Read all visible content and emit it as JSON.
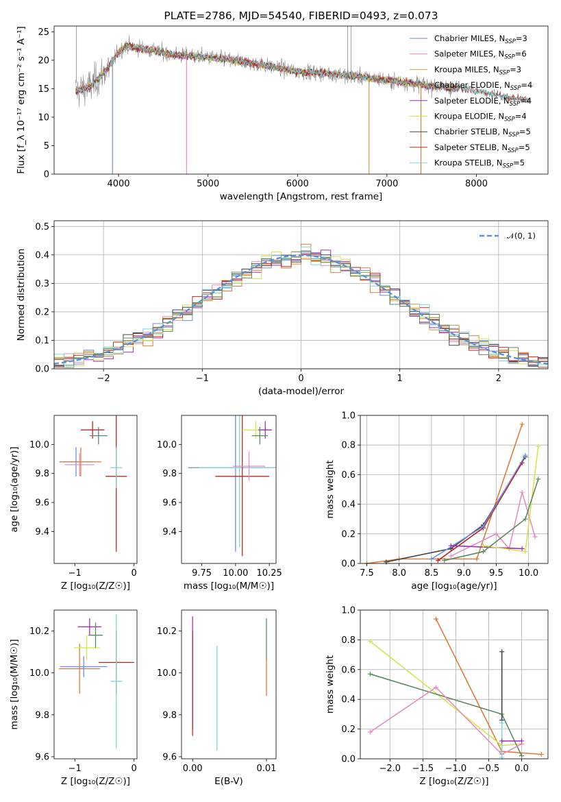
{
  "palette": [
    "#6d8be0",
    "#e88cc0",
    "#bfa43c",
    "#e07b39",
    "#9b2fb0",
    "#d7e34b",
    "#444444",
    "#c0241e",
    "#7fd6d6",
    "#5b8a5e"
  ],
  "chart_data": [
    {
      "id": "spectrum",
      "type": "line",
      "title": "PLATE=2786, MJD=54540, FIBERID=0493, z=0.073",
      "xlabel": "wavelength [Angstrom, rest frame]",
      "ylabel": "Flux [f_λ 10⁻¹⁷ erg cm⁻² s⁻¹ A⁻¹]",
      "xlim": [
        3280,
        8800
      ],
      "ylim": [
        0,
        26
      ],
      "xticks": [
        "4000",
        "5000",
        "6000",
        "7000",
        "8000"
      ],
      "yticks": [
        "0",
        "5",
        "10",
        "15",
        "20",
        "25"
      ],
      "grid": false,
      "legend_position": "top-right",
      "legend": [
        {
          "label": "Chabrier MILES, N",
          "sub": "SSP",
          "val": "=3",
          "color": "#6d8be0"
        },
        {
          "label": "Salpeter MILES, N",
          "sub": "SSP",
          "val": "=6",
          "color": "#e88cc0"
        },
        {
          "label": "Kroupa MILES, N",
          "sub": "SSP",
          "val": "=3",
          "color": "#bfa43c"
        },
        {
          "label": "Chabrier ELODIE, N",
          "sub": "SSP",
          "val": "=4",
          "color": "#e07b39"
        },
        {
          "label": "Salpeter ELODIE, N",
          "sub": "SSP",
          "val": "=4",
          "color": "#9b2fb0"
        },
        {
          "label": "Kroupa ELODIE, N",
          "sub": "SSP",
          "val": "=4",
          "color": "#d7e34b"
        },
        {
          "label": "Chabrier STELIB, N",
          "sub": "SSP",
          "val": "=5",
          "color": "#444444"
        },
        {
          "label": "Salpeter STELIB, N",
          "sub": "SSP",
          "val": "=5",
          "color": "#c0241e"
        },
        {
          "label": "Kroupa STELIB, N",
          "sub": "SSP",
          "val": "=5",
          "color": "#7fd6d6"
        }
      ],
      "continuum": [
        [
          3520,
          14.5
        ],
        [
          3700,
          15.5
        ],
        [
          3900,
          19.0
        ],
        [
          4000,
          21.5
        ],
        [
          4100,
          22.5
        ],
        [
          4300,
          22.0
        ],
        [
          4600,
          21.0
        ],
        [
          5000,
          20.5
        ],
        [
          5500,
          19.5
        ],
        [
          6000,
          18.0
        ],
        [
          6500,
          17.5
        ],
        [
          7000,
          16.5
        ],
        [
          7500,
          15.5
        ],
        [
          7800,
          15.0
        ]
      ],
      "stelib_continuum": [
        [
          7500,
          15.5
        ],
        [
          7800,
          15.2
        ],
        [
          8000,
          14.6
        ],
        [
          8200,
          14.0
        ],
        [
          8500,
          13.2
        ],
        [
          8600,
          12.9
        ]
      ],
      "absorption_lines": [
        [
          3933,
          0
        ],
        [
          4760,
          0
        ],
        [
          6800,
          0
        ],
        [
          7380,
          0
        ]
      ],
      "data_spikes": [
        [
          3530,
          26
        ],
        [
          6560,
          26
        ],
        [
          6600,
          26
        ]
      ]
    },
    {
      "id": "residuals",
      "type": "line",
      "xlabel": "(data-model)/error",
      "ylabel": "Normed distribution",
      "xlim": [
        -2.5,
        2.5
      ],
      "ylim": [
        0,
        0.52
      ],
      "xticks": [
        "−2",
        "−1",
        "0",
        "1",
        "2"
      ],
      "yticks": [
        "0.0",
        "0.1",
        "0.2",
        "0.3",
        "0.4",
        "0.5"
      ],
      "grid": true,
      "legend_position": "top-right",
      "legend": [
        {
          "label": "𝒩(0, 1)",
          "color": "#5b8fd6"
        }
      ],
      "bin_width": 0.1
    },
    {
      "id": "age-vs-z",
      "type": "scatter",
      "xlabel": "Z [log₁₀(Z/Z☉)]",
      "ylabel": "age  [log₁₀(age/yr)]",
      "xlim": [
        -1.35,
        0.05
      ],
      "ylim": [
        9.18,
        10.2
      ],
      "xticks": [
        "−1",
        "0"
      ],
      "yticks": [
        "9.4",
        "9.6",
        "9.8",
        "10.0"
      ],
      "points": [
        {
          "x": -0.98,
          "y": 9.88,
          "xerr": 0.28,
          "yerr": 0.1,
          "color": "#6d8be0"
        },
        {
          "x": -0.92,
          "y": 9.86,
          "xerr": 0.25,
          "yerr": 0.08,
          "color": "#e88cc0"
        },
        {
          "x": -0.9,
          "y": 9.88,
          "xerr": 0.35,
          "yerr": 0.1,
          "color": "#e07b39"
        },
        {
          "x": -0.7,
          "y": 10.1,
          "xerr": 0.2,
          "yerr": 0.06,
          "color": "#c0241e"
        },
        {
          "x": -0.6,
          "y": 10.06,
          "xerr": 0.15,
          "yerr": 0.06,
          "color": "#5b8a5e"
        },
        {
          "x": -0.3,
          "y": 9.78,
          "xerr": 0.18,
          "yerr": 0.52,
          "color": "#c0241e"
        },
        {
          "x": -0.3,
          "y": 9.84,
          "xerr": 0.1,
          "yerr": 0.14,
          "color": "#7fd6d6"
        }
      ]
    },
    {
      "id": "age-vs-mass",
      "type": "scatter",
      "xlabel": "mass [log₁₀(M/M☉)]",
      "ylabel": "",
      "xlim": [
        9.6,
        10.3
      ],
      "ylim": [
        9.18,
        10.2
      ],
      "xticks": [
        "9.75",
        "10.00",
        "10.25"
      ],
      "yticks": [
        "9.4",
        "9.6",
        "9.8",
        "10.0"
      ],
      "points": [
        {
          "x": 10.0,
          "y": 9.84,
          "xerr": 0.35,
          "yerr": 0.58,
          "color": "#6d8be0"
        },
        {
          "x": 10.03,
          "y": 9.84,
          "xerr": 0.3,
          "yerr": 0.55,
          "color": "#7fd6d6"
        },
        {
          "x": 10.05,
          "y": 9.78,
          "xerr": 0.2,
          "yerr": 0.55,
          "color": "#c0241e"
        },
        {
          "x": 10.1,
          "y": 9.85,
          "xerr": 0.12,
          "yerr": 0.1,
          "color": "#e88cc0"
        },
        {
          "x": 10.15,
          "y": 10.1,
          "xerr": 0.1,
          "yerr": 0.06,
          "color": "#d7e34b"
        },
        {
          "x": 10.22,
          "y": 10.1,
          "xerr": 0.05,
          "yerr": 0.06,
          "color": "#9b2fb0"
        },
        {
          "x": 10.18,
          "y": 10.06,
          "xerr": 0.06,
          "yerr": 0.06,
          "color": "#5b8a5e"
        }
      ]
    },
    {
      "id": "weight-vs-age",
      "type": "line",
      "xlabel": "age  [log₁₀(age/yr)]",
      "ylabel": "mass weight",
      "xlim": [
        7.4,
        10.3
      ],
      "ylim": [
        0,
        1
      ],
      "xticks": [
        "7.5",
        "8.0",
        "8.5",
        "9.0",
        "9.5",
        "10.0"
      ],
      "yticks": [
        "0.0",
        "0.2",
        "0.4",
        "0.6",
        "0.8",
        "1.0"
      ],
      "grid": true,
      "series": [
        {
          "color": "#e07b39",
          "points": [
            [
              7.5,
              0.0
            ],
            [
              8.0,
              0.03
            ],
            [
              9.2,
              0.03
            ],
            [
              9.9,
              0.94
            ]
          ]
        },
        {
          "color": "#444444",
          "points": [
            [
              7.8,
              0.01
            ],
            [
              8.8,
              0.1
            ],
            [
              9.3,
              0.26
            ],
            [
              9.95,
              0.72
            ]
          ]
        },
        {
          "color": "#c0241e",
          "points": [
            [
              8.6,
              0.02
            ],
            [
              9.3,
              0.24
            ],
            [
              9.9,
              0.68
            ]
          ]
        },
        {
          "color": "#6d8be0",
          "points": [
            [
              8.5,
              0.03
            ],
            [
              9.3,
              0.25
            ],
            [
              9.95,
              0.73
            ]
          ]
        },
        {
          "color": "#e88cc0",
          "points": [
            [
              8.8,
              0.05
            ],
            [
              9.5,
              0.2
            ],
            [
              9.7,
              0.1
            ],
            [
              9.9,
              0.48
            ],
            [
              10.1,
              0.18
            ]
          ]
        },
        {
          "color": "#9b2fb0",
          "points": [
            [
              8.8,
              0.12
            ],
            [
              9.9,
              0.1
            ]
          ]
        },
        {
          "color": "#d7e34b",
          "points": [
            [
              9.3,
              0.12
            ],
            [
              9.95,
              0.08
            ],
            [
              10.15,
              0.79
            ]
          ]
        },
        {
          "color": "#5b8a5e",
          "points": [
            [
              8.7,
              0.02
            ],
            [
              9.3,
              0.08
            ],
            [
              9.95,
              0.3
            ],
            [
              10.15,
              0.57
            ]
          ]
        }
      ]
    },
    {
      "id": "mass-vs-z",
      "type": "scatter",
      "xlabel": "Z [log₁₀(Z/Z☉)]",
      "ylabel": "mass [log₁₀(M/M☉)]",
      "xlim": [
        -1.35,
        0.05
      ],
      "ylim": [
        9.59,
        10.3
      ],
      "xticks": [
        "−1",
        "0"
      ],
      "yticks": [
        "9.6",
        "9.8",
        "10.0",
        "10.2"
      ],
      "points": [
        {
          "x": -0.85,
          "y": 10.03,
          "xerr": 0.4,
          "yerr": 0.05,
          "color": "#6d8be0"
        },
        {
          "x": -0.92,
          "y": 10.02,
          "xerr": 0.35,
          "yerr": 0.12,
          "color": "#e07b39"
        },
        {
          "x": -0.75,
          "y": 10.22,
          "xerr": 0.2,
          "yerr": 0.04,
          "color": "#9b2fb0"
        },
        {
          "x": -0.8,
          "y": 10.12,
          "xerr": 0.22,
          "yerr": 0.06,
          "color": "#d7e34b"
        },
        {
          "x": -0.65,
          "y": 10.18,
          "xerr": 0.12,
          "yerr": 0.06,
          "color": "#5b8a5e"
        },
        {
          "x": -0.3,
          "y": 10.05,
          "xerr": 0.3,
          "yerr": 0.15,
          "color": "#c0241e"
        },
        {
          "x": -0.3,
          "y": 9.96,
          "xerr": 0.1,
          "yerr": 0.32,
          "color": "#7fd6d6"
        }
      ]
    },
    {
      "id": "mass-vs-ebv",
      "type": "scatter",
      "xlabel": "E(B-V)",
      "ylabel": "",
      "xlim": [
        -0.0015,
        0.0113
      ],
      "ylim": [
        9.59,
        10.3
      ],
      "xticks": [
        "0.00",
        "0.01"
      ],
      "yticks": [
        "9.6",
        "9.8",
        "10.0",
        "10.2"
      ],
      "points": [
        {
          "x": 0.0,
          "y": 10.0,
          "xerr": 0,
          "yerr": 0.27,
          "color": "#9b2fb0"
        },
        {
          "x": 0.0,
          "y": 9.95,
          "xerr": 0,
          "yerr": 0.25,
          "color": "#c0241e"
        },
        {
          "x": 0.0033,
          "y": 9.88,
          "xerr": 0,
          "yerr": 0.25,
          "color": "#7fd6d6"
        },
        {
          "x": 0.01,
          "y": 10.16,
          "xerr": 0,
          "yerr": 0.1,
          "color": "#5b8a5e"
        },
        {
          "x": 0.01,
          "y": 9.98,
          "xerr": 0,
          "yerr": 0.09,
          "color": "#e07b39"
        }
      ]
    },
    {
      "id": "weight-vs-z",
      "type": "line",
      "xlabel": "Z [log₁₀(Z/Z☉)]",
      "ylabel": "mass weight",
      "xlim": [
        -2.45,
        0.4
      ],
      "ylim": [
        0,
        1
      ],
      "xticks": [
        "−2.0",
        "−1.5",
        "−1.0",
        "−0.5",
        "0.0"
      ],
      "yticks": [
        "0.0",
        "0.2",
        "0.4",
        "0.6",
        "0.8",
        "1.0"
      ],
      "grid": true,
      "series": [
        {
          "color": "#e07b39",
          "points": [
            [
              -1.3,
              0.94
            ],
            [
              -0.3,
              0.05
            ],
            [
              0.3,
              0.03
            ]
          ]
        },
        {
          "color": "#d7e34b",
          "points": [
            [
              -2.3,
              0.79
            ],
            [
              -0.3,
              0.09
            ],
            [
              0.0,
              0.1
            ]
          ]
        },
        {
          "color": "#5b8a5e",
          "points": [
            [
              -2.3,
              0.57
            ],
            [
              -0.3,
              0.3
            ],
            [
              0.0,
              0.02
            ]
          ]
        },
        {
          "color": "#e88cc0",
          "points": [
            [
              -2.3,
              0.18
            ],
            [
              -1.3,
              0.48
            ],
            [
              -0.3,
              0.03
            ],
            [
              0.0,
              0.1
            ]
          ]
        },
        {
          "color": "#444444",
          "points": [
            [
              -0.3,
              0.72
            ],
            [
              -0.3,
              0.26
            ]
          ]
        },
        {
          "color": "#7fd6d6",
          "points": [
            [
              -0.3,
              0.24
            ],
            [
              -0.3,
              0.01
            ]
          ]
        },
        {
          "color": "#9b2fb0",
          "points": [
            [
              -0.3,
              0.12
            ],
            [
              0.0,
              0.12
            ]
          ]
        }
      ]
    }
  ]
}
